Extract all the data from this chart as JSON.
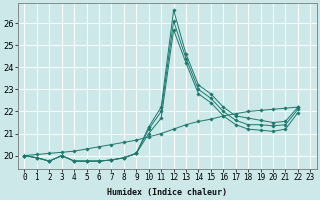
{
  "xlabel": "Humidex (Indice chaleur)",
  "background_color": "#cce8e8",
  "grid_color": "#ffffff",
  "line_color": "#1a7a6e",
  "xlim": [
    -0.5,
    23.5
  ],
  "ylim": [
    19.4,
    26.9
  ],
  "yticks": [
    20,
    21,
    22,
    23,
    24,
    25,
    26
  ],
  "xticks": [
    0,
    1,
    2,
    3,
    4,
    5,
    6,
    7,
    8,
    9,
    10,
    11,
    12,
    13,
    14,
    15,
    16,
    17,
    18,
    19,
    20,
    21,
    22,
    23
  ],
  "series": [
    [
      20.0,
      19.9,
      19.75,
      20.0,
      19.75,
      19.75,
      19.75,
      19.8,
      19.9,
      20.1,
      21.3,
      22.2,
      26.6,
      24.6,
      23.2,
      22.8,
      22.2,
      21.8,
      21.7,
      21.6,
      21.5,
      21.55,
      22.2
    ],
    [
      20.0,
      19.9,
      19.75,
      20.0,
      19.75,
      19.75,
      19.75,
      19.8,
      19.9,
      20.1,
      21.2,
      22.0,
      26.1,
      24.4,
      23.0,
      22.6,
      22.0,
      21.6,
      21.4,
      21.4,
      21.35,
      21.4,
      22.1
    ],
    [
      20.0,
      19.9,
      19.75,
      20.0,
      19.75,
      19.75,
      19.75,
      19.8,
      19.9,
      20.1,
      21.0,
      21.7,
      25.7,
      24.2,
      22.8,
      22.4,
      21.8,
      21.4,
      21.2,
      21.15,
      21.1,
      21.2,
      21.95
    ],
    [
      20.0,
      20.05,
      20.1,
      20.15,
      20.2,
      20.3,
      20.4,
      20.5,
      20.6,
      20.7,
      20.85,
      21.0,
      21.2,
      21.4,
      21.55,
      21.65,
      21.8,
      21.9,
      22.0,
      22.05,
      22.1,
      22.15,
      22.2
    ]
  ],
  "xlabel_fontsize": 6.0,
  "tick_fontsize": 5.5,
  "ytick_fontsize": 6.0
}
